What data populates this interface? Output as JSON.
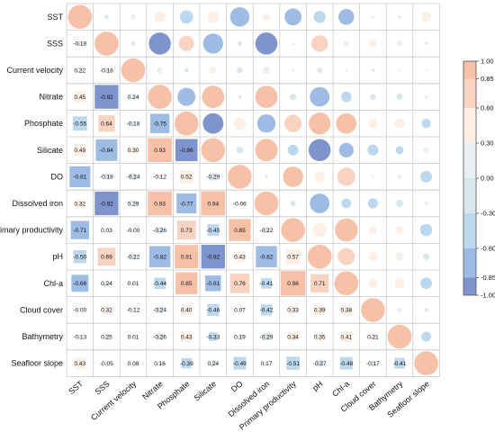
{
  "chart_data": {
    "type": "heatmap",
    "variables": [
      "SST",
      "SSS",
      "Current velocity",
      "Nitrate",
      "Phosphate",
      "Silicate",
      "DO",
      "Dissolved iron",
      "Primary productivity",
      "pH",
      "Chl-a",
      "Cloud cover",
      "Bathymetry",
      "Seafloor slope"
    ],
    "lower_triangle_values": [
      [],
      [
        "-0.18"
      ],
      [
        "0.22",
        "-0.18"
      ],
      [
        "0.45",
        "-0.92",
        "0.24"
      ],
      [
        "-0.55",
        "0.64",
        "-0.18",
        "-0.75"
      ],
      [
        "0.49",
        "-0.84",
        "0.30",
        "0.93",
        "-0.86"
      ],
      [
        "-0.81",
        "-0.18",
        "-0.24",
        "-0.12",
        "0.52",
        "-0.29"
      ],
      [
        "0.32",
        "-0.92",
        "0.29",
        "0.93",
        "-0.77",
        "0.94",
        "-0.06"
      ],
      [
        "-0.71",
        "0.03",
        "-0.00",
        "-0.26",
        "0.73",
        "-0.45",
        "0.85",
        "-0.22"
      ],
      [
        "-0.50",
        "0.69",
        "-0.22",
        "-0.82",
        "0.91",
        "-0.92",
        "0.43",
        "-0.82",
        "0.57"
      ],
      [
        "-0.66",
        "0.24",
        "0.01",
        "-0.44",
        "0.85",
        "-0.61",
        "0.76",
        "-0.41",
        "0.96",
        "0.71"
      ],
      [
        "-0.00",
        "0.32",
        "-0.12",
        "-0.24",
        "0.40",
        "-0.46",
        "0.07",
        "-0.42",
        "0.33",
        "0.39",
        "0.38"
      ],
      [
        "-0.13",
        "0.25",
        "0.01",
        "-0.26",
        "0.43",
        "-0.33",
        "0.19",
        "-0.29",
        "0.34",
        "0.35",
        "0.41",
        "0.21"
      ],
      [
        "0.43",
        "-0.05",
        "0.08",
        "0.16",
        "-0.39",
        "0.24",
        "-0.49",
        "0.17",
        "-0.51",
        "-0.27",
        "-0.48",
        "-0.17",
        "-0.41"
      ]
    ],
    "upper_display": "circles (size and color by correlation)",
    "lower_display": "squares (size and color by correlation) with value labels",
    "diagonal": 1.0,
    "colorbar": {
      "ticks": [
        "1.00",
        "0.85",
        "0.60",
        "0.30",
        "0.00",
        "-0.30",
        "-0.60",
        "-0.85",
        "-1.00"
      ],
      "placement": "right"
    },
    "colors": {
      "strong_negative": "#7f93cc",
      "moderate_negative": "#9ebce3",
      "weak_negative": "#bcd8ee",
      "neutral_negative": "#d8e6ee",
      "neutral_positive": "#e9eff2",
      "weak_positive": "#fcefe6",
      "moderate_positive": "#f9d3c1",
      "strong_positive": "#f7c1a8"
    },
    "grid": true
  }
}
